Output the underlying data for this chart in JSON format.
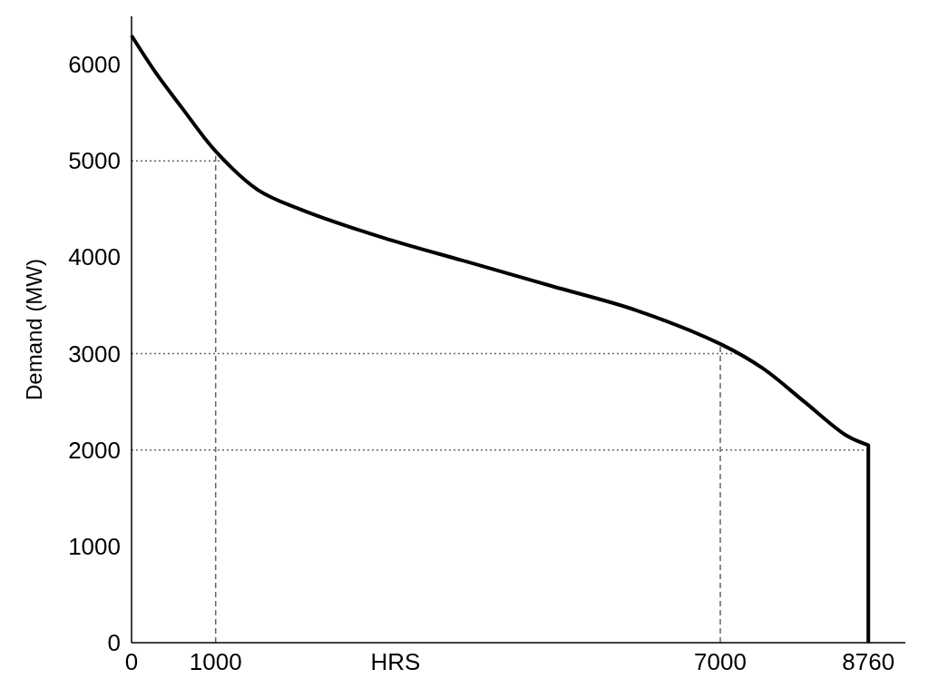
{
  "chart_data": {
    "type": "line",
    "xlabel": "HRS",
    "ylabel": "Demand (MW)",
    "xlim": [
      0,
      9200
    ],
    "ylim": [
      0,
      6500
    ],
    "xticks": [
      0,
      1000,
      7000,
      8760
    ],
    "yticks": [
      0,
      1000,
      2000,
      3000,
      4000,
      5000,
      6000
    ],
    "grid": false,
    "marker": "none",
    "line_style": "solid",
    "series": [
      {
        "color": "#000000",
        "x": [
          0,
          300,
          600,
          1000,
          1500,
          2000,
          3000,
          4000,
          5000,
          6000,
          7000,
          7500,
          8000,
          8500,
          8760,
          8760
        ],
        "values": [
          6300,
          5900,
          5550,
          5100,
          4700,
          4500,
          4200,
          3950,
          3700,
          3450,
          3100,
          2850,
          2500,
          2150,
          2050,
          0
        ]
      }
    ],
    "ref_lines": [
      {
        "axis": "y",
        "value": 5000,
        "line_style": "dotted",
        "color": "#666666"
      },
      {
        "axis": "y",
        "value": 3000,
        "line_style": "dotted",
        "color": "#666666"
      },
      {
        "axis": "y",
        "value": 2000,
        "line_style": "dotted",
        "color": "#666666"
      },
      {
        "axis": "x",
        "value": 1000,
        "line_style": "dashed",
        "color": "#666666"
      },
      {
        "axis": "x",
        "value": 7000,
        "line_style": "dashed",
        "color": "#666666"
      }
    ]
  }
}
